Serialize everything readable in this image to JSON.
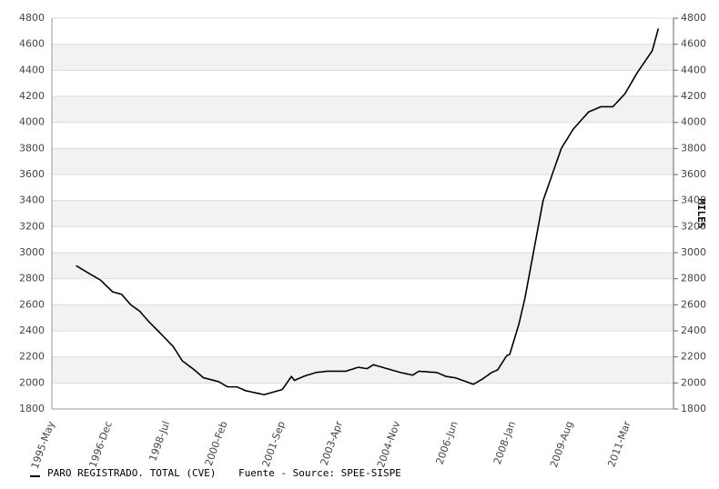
{
  "chart_data": {
    "type": "line",
    "y2label": "MILES",
    "source": "Fuente - Source: SPEE-SISPE",
    "categories": [
      "1995-May",
      null,
      null,
      null,
      null,
      null,
      null,
      null,
      null,
      null,
      null,
      null,
      null,
      null,
      null,
      null,
      null,
      null,
      null,
      "1996-Dec",
      null,
      null,
      null,
      null,
      null,
      null,
      null,
      null,
      null,
      null,
      null,
      null,
      null,
      null,
      null,
      null,
      null,
      null,
      "1998-Jul",
      null,
      null,
      null,
      null,
      null,
      null,
      null,
      null,
      null,
      null,
      null,
      null,
      null,
      null,
      null,
      null,
      null,
      null,
      "2000-Feb",
      null,
      null,
      null,
      null,
      null,
      null,
      null,
      null,
      null,
      null,
      null,
      null,
      null,
      null,
      null,
      null,
      null,
      null,
      "2001-Sep",
      null,
      null,
      null,
      null,
      null,
      null,
      null,
      null,
      null,
      null,
      null,
      null,
      null,
      null,
      null,
      null,
      null,
      null,
      "2003-Apr",
      null,
      null,
      null,
      null,
      null,
      null,
      null,
      null,
      null,
      null,
      null,
      null,
      null,
      null,
      null,
      null,
      null,
      null,
      "2004-Nov",
      null,
      null,
      null,
      null,
      null,
      null,
      null,
      null,
      null,
      null,
      null,
      null,
      null,
      null,
      null,
      null,
      null,
      null,
      "2006-Jun",
      null,
      null,
      null,
      null,
      null,
      null,
      null,
      null,
      null,
      null,
      null,
      null,
      null,
      null,
      null,
      null,
      null,
      null,
      "2008-Jan",
      null,
      null,
      null,
      null,
      null,
      null,
      null,
      null,
      null,
      null,
      null,
      null,
      null,
      null,
      null,
      null,
      null,
      null,
      "2009-Aug",
      null,
      null,
      null,
      null,
      null,
      null,
      null,
      null,
      null,
      null,
      null,
      null,
      null,
      null,
      null,
      null,
      null,
      null,
      "2011-Mar",
      null,
      null,
      null,
      null,
      null,
      null,
      null,
      null,
      null,
      null,
      null,
      null,
      null,
      null,
      null
    ],
    "series": [
      {
        "name": "PARO REGISTRADO. TOTAL (CVE)",
        "color": "#000000",
        "values": [
          null,
          null,
          null,
          null,
          null,
          null,
          null,
          null,
          2900,
          2886,
          2872,
          2858,
          2844,
          2830,
          2817,
          2803,
          2790,
          2768,
          2745,
          2723,
          2700,
          2693,
          2687,
          2680,
          2653,
          2627,
          2600,
          2583,
          2567,
          2550,
          2523,
          2497,
          2470,
          2447,
          2423,
          2400,
          2376,
          2352,
          2328,
          2304,
          2280,
          2243,
          2207,
          2170,
          2153,
          2135,
          2118,
          2100,
          2080,
          2060,
          2040,
          2034,
          2028,
          2022,
          2016,
          2010,
          1997,
          1983,
          1970,
          1970,
          1970,
          1970,
          1960,
          1950,
          1940,
          1935,
          1930,
          1925,
          1920,
          1915,
          1910,
          1917,
          1923,
          1930,
          1937,
          1943,
          1950,
          1983,
          2017,
          2050,
          2020,
          2030,
          2040,
          2050,
          2058,
          2065,
          2072,
          2080,
          2083,
          2085,
          2088,
          2090,
          2090,
          2090,
          2090,
          2090,
          2090,
          2090,
          2098,
          2105,
          2113,
          2120,
          2117,
          2113,
          2110,
          2125,
          2140,
          2133,
          2127,
          2120,
          2113,
          2107,
          2100,
          2093,
          2087,
          2080,
          2075,
          2070,
          2065,
          2060,
          2075,
          2090,
          2088,
          2087,
          2085,
          2083,
          2082,
          2080,
          2070,
          2060,
          2050,
          2047,
          2043,
          2040,
          2032,
          2023,
          2015,
          2007,
          1998,
          1990,
          2003,
          2017,
          2030,
          2047,
          2063,
          2080,
          2090,
          2100,
          2137,
          2173,
          2210,
          2220,
          2297,
          2373,
          2450,
          2550,
          2650,
          2775,
          2900,
          3025,
          3150,
          3275,
          3400,
          3467,
          3533,
          3600,
          3667,
          3733,
          3800,
          3838,
          3875,
          3913,
          3950,
          3976,
          4002,
          4028,
          4054,
          4080,
          4090,
          4100,
          4110,
          4120,
          4120,
          4120,
          4120,
          4120,
          4145,
          4170,
          4195,
          4220,
          4260,
          4300,
          4340,
          4380,
          4414,
          4448,
          4482,
          4516,
          4550,
          4635,
          4720,
          null,
          null,
          null,
          null,
          null
        ]
      }
    ],
    "ylim": [
      1800,
      4800
    ],
    "yticks": [
      1800,
      2000,
      2200,
      2400,
      2600,
      2800,
      3000,
      3200,
      3400,
      3600,
      3800,
      4000,
      4200,
      4400,
      4600,
      4800
    ],
    "y2lim": [
      1800,
      4800
    ],
    "y2ticks": [
      1800,
      2000,
      2200,
      2400,
      2600,
      2800,
      3000,
      3200,
      3400,
      3600,
      3800,
      4000,
      4200,
      4400,
      4600,
      4800
    ],
    "grid": true,
    "band_color": "#f2f2f2",
    "legend": "bottom-left"
  }
}
